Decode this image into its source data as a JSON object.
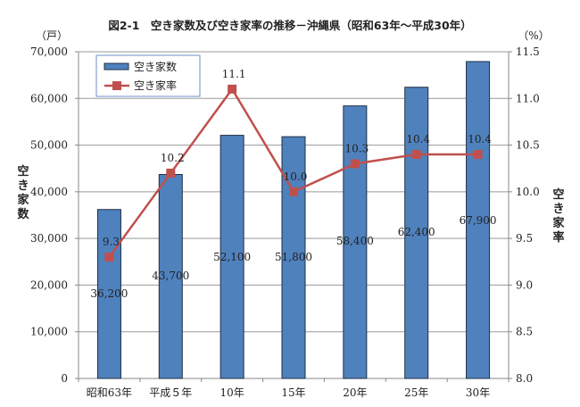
{
  "chart_data": {
    "type": "bar+line",
    "title": "図2-1　空き家数及び空き家率の推移－沖縄県（昭和63年～平成30年）",
    "categories": [
      "昭和63年",
      "平成５年",
      "10年",
      "15年",
      "20年",
      "25年",
      "30年"
    ],
    "series": [
      {
        "name": "空き家数",
        "type": "bar",
        "axis": "left",
        "values": [
          36200,
          43700,
          52100,
          51800,
          58400,
          62400,
          67900
        ],
        "labels": [
          "36,200",
          "43,700",
          "52,100",
          "51,800",
          "58,400",
          "62,400",
          "67,900"
        ],
        "color": "#4f81bd"
      },
      {
        "name": "空き家率",
        "type": "line",
        "axis": "right",
        "values": [
          9.3,
          10.2,
          11.1,
          10.0,
          10.3,
          10.4,
          10.4
        ],
        "labels": [
          "9.3",
          "10.2",
          "11.1",
          "10.0",
          "10.3",
          "10.4",
          "10.4"
        ],
        "color": "#c0504d"
      }
    ],
    "left_axis": {
      "unit": "（戸）",
      "label": "空き家数",
      "ylim": [
        0,
        70000
      ],
      "ticks": [
        "0",
        "10,000",
        "20,000",
        "30,000",
        "40,000",
        "50,000",
        "60,000",
        "70,000"
      ]
    },
    "right_axis": {
      "unit": "（%）",
      "label": "空き家率",
      "ylim": [
        8.0,
        11.5
      ],
      "ticks": [
        "8.0",
        "8.5",
        "9.0",
        "9.5",
        "10.0",
        "10.5",
        "11.0",
        "11.5"
      ]
    },
    "grid": true,
    "legend": "top-left"
  }
}
